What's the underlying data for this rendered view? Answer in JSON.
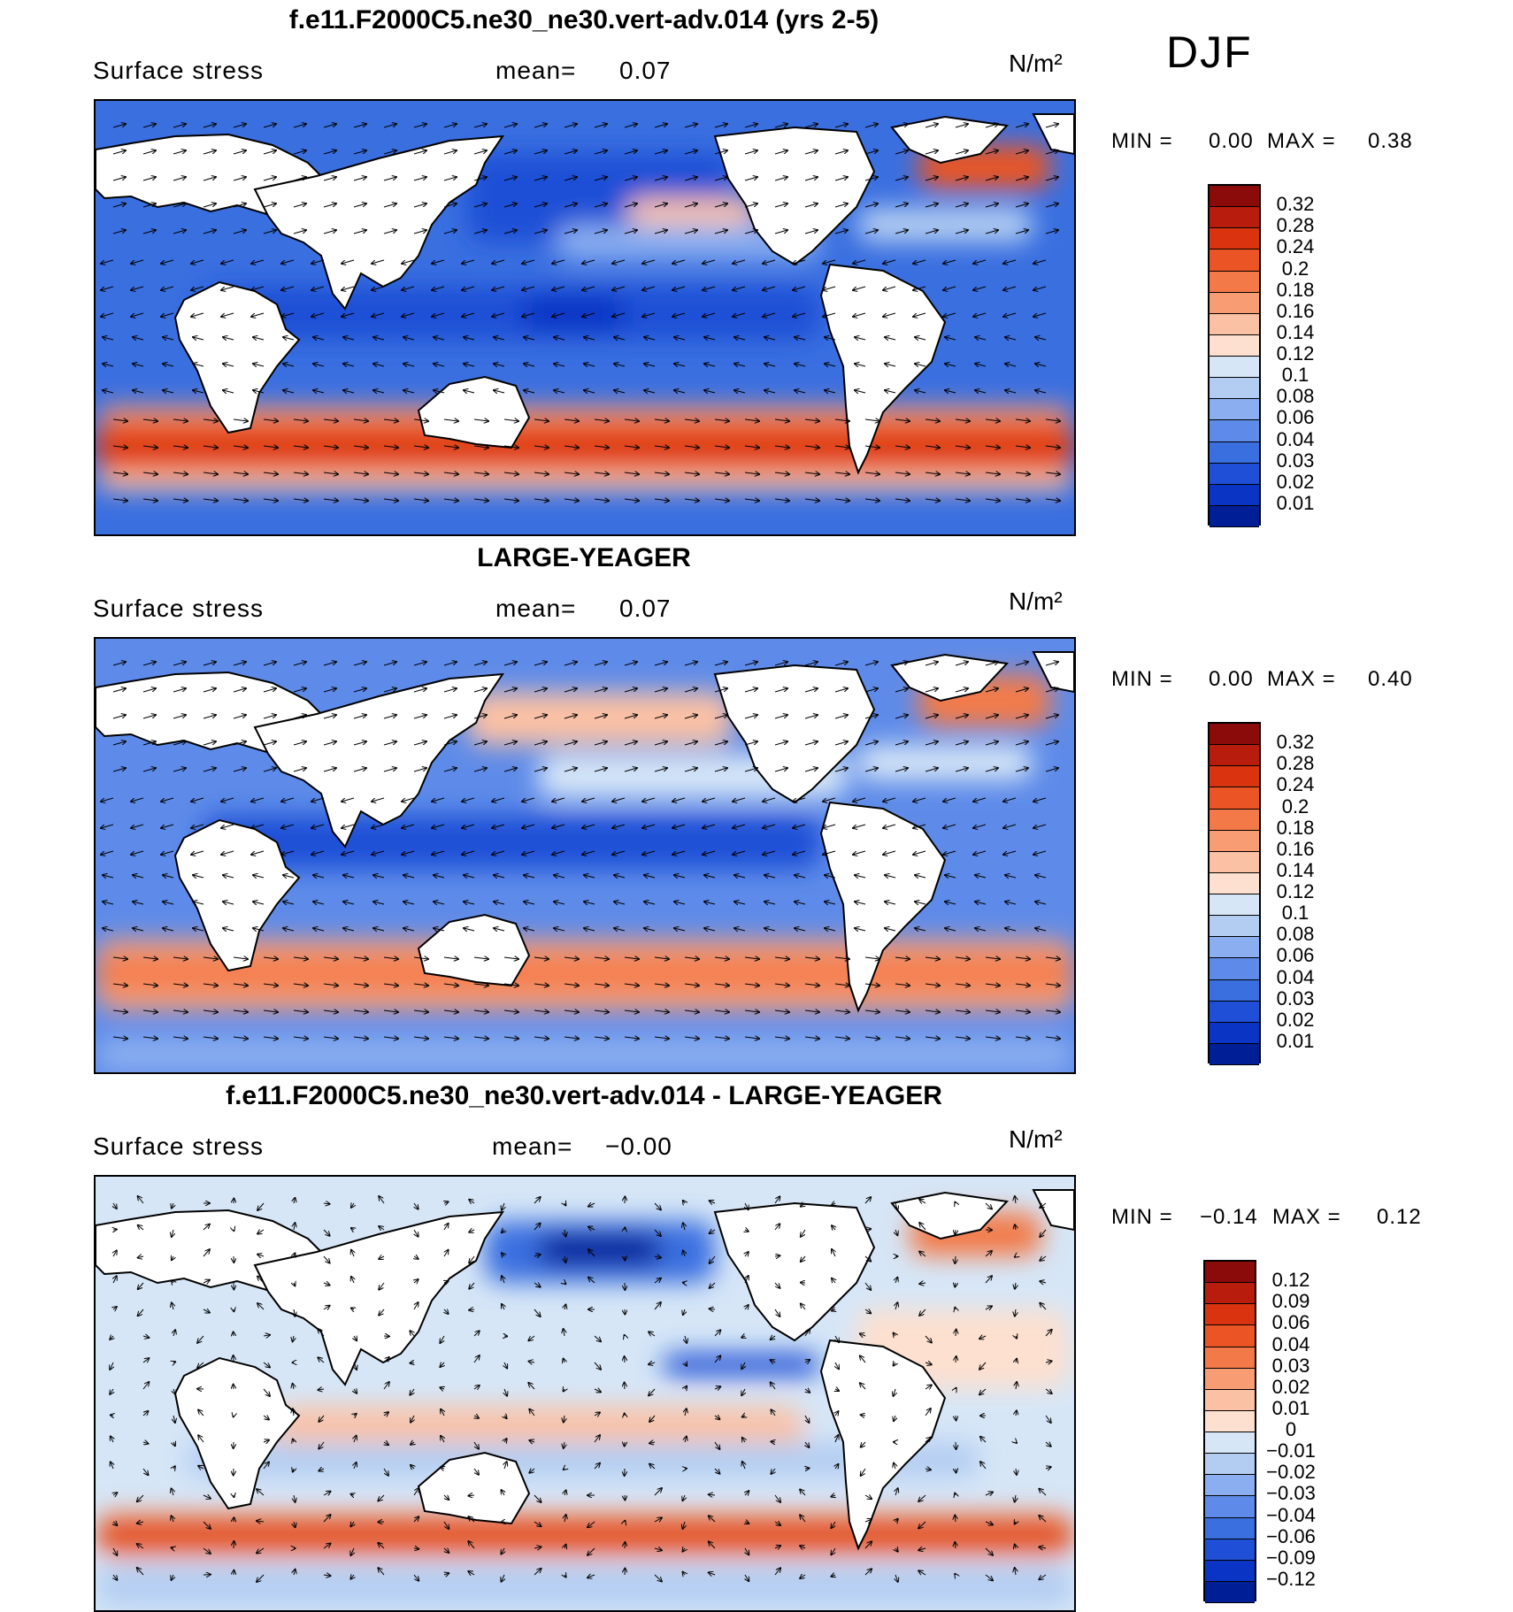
{
  "season": "DJF",
  "panels": [
    {
      "title": "f.e11.F2000C5.ne30_ne30.vert-adv.014 (yrs 2-5)",
      "variable": "Surface stress",
      "mean_label": "mean=",
      "mean_value": "0.07",
      "units": "N/m²",
      "min_label": "MIN =",
      "min_value": "0.00",
      "max_label": "MAX =",
      "max_value": "0.38",
      "colorbar_labels": [
        "0.32",
        "0.28",
        "0.24",
        "0.2",
        "0.18",
        "0.16",
        "0.14",
        "0.12",
        "0.1",
        "0.08",
        "0.06",
        "0.04",
        "0.03",
        "0.02",
        "0.01"
      ],
      "colorbar_colors": [
        "#8b0a0a",
        "#b81c0c",
        "#d9340f",
        "#eb5424",
        "#f37a48",
        "#f89c74",
        "#fbc1a4",
        "#fde0cf",
        "#d6e6f7",
        "#b3cdf2",
        "#8aaef0",
        "#5e8be9",
        "#3a6fe0",
        "#1f4fd6",
        "#0a35c4",
        "#001e96"
      ],
      "map_style": "base"
    },
    {
      "title": "LARGE-YEAGER",
      "variable": "Surface stress",
      "mean_label": "mean=",
      "mean_value": "0.07",
      "units": "N/m²",
      "min_label": "MIN =",
      "min_value": "0.00",
      "max_label": "MAX =",
      "max_value": "0.40",
      "colorbar_labels": [
        "0.32",
        "0.28",
        "0.24",
        "0.2",
        "0.18",
        "0.16",
        "0.14",
        "0.12",
        "0.1",
        "0.08",
        "0.06",
        "0.04",
        "0.03",
        "0.02",
        "0.01"
      ],
      "colorbar_colors": [
        "#8b0a0a",
        "#b81c0c",
        "#d9340f",
        "#eb5424",
        "#f37a48",
        "#f89c74",
        "#fbc1a4",
        "#fde0cf",
        "#d6e6f7",
        "#b3cdf2",
        "#8aaef0",
        "#5e8be9",
        "#3a6fe0",
        "#1f4fd6",
        "#0a35c4",
        "#001e96"
      ],
      "map_style": "obs"
    },
    {
      "title": "f.e11.F2000C5.ne30_ne30.vert-adv.014 - LARGE-YEAGER",
      "variable": "Surface stress",
      "mean_label": "mean=",
      "mean_value": "−0.00",
      "units": "N/m²",
      "min_label": "MIN =",
      "min_value": "−0.14",
      "max_label": "MAX =",
      "max_value": "0.12",
      "colorbar_labels": [
        "0.12",
        "0.09",
        "0.06",
        "0.04",
        "0.03",
        "0.02",
        "0.01",
        "0",
        "−0.01",
        "−0.02",
        "−0.03",
        "−0.04",
        "−0.06",
        "−0.09",
        "−0.12"
      ],
      "colorbar_colors": [
        "#8b0a0a",
        "#b81c0c",
        "#d9340f",
        "#eb5424",
        "#f37a48",
        "#f89c74",
        "#fbc1a4",
        "#fde0cf",
        "#d6e6f7",
        "#b3cdf2",
        "#8aaef0",
        "#5e8be9",
        "#3a6fe0",
        "#1f4fd6",
        "#0a35c4",
        "#001e96"
      ],
      "map_style": "diff"
    }
  ]
}
